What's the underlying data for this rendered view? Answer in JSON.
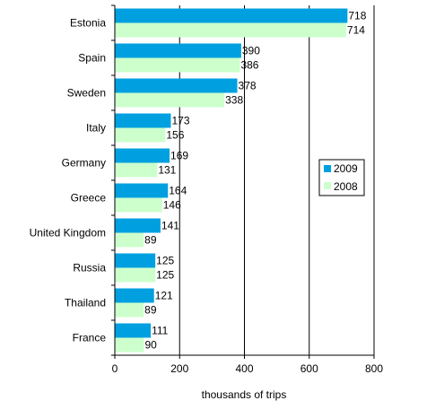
{
  "chart_data": {
    "type": "bar",
    "orientation": "horizontal",
    "categories": [
      "Estonia",
      "Spain",
      "Sweden",
      "Italy",
      "Germany",
      "Greece",
      "United Kingdom",
      "Russia",
      "Thailand",
      "France"
    ],
    "series": [
      {
        "name": "2009",
        "values": [
          718,
          390,
          378,
          173,
          169,
          164,
          141,
          125,
          121,
          111
        ],
        "color": "#00a0e0"
      },
      {
        "name": "2008",
        "values": [
          714,
          386,
          338,
          156,
          131,
          146,
          89,
          125,
          89,
          90
        ],
        "color": "#ccffcc"
      }
    ],
    "xlabel": "thousands of trips",
    "xlim": [
      0,
      800
    ],
    "xticks": [
      0,
      200,
      400,
      600,
      800
    ],
    "grid": "vertical",
    "legend": "right"
  }
}
